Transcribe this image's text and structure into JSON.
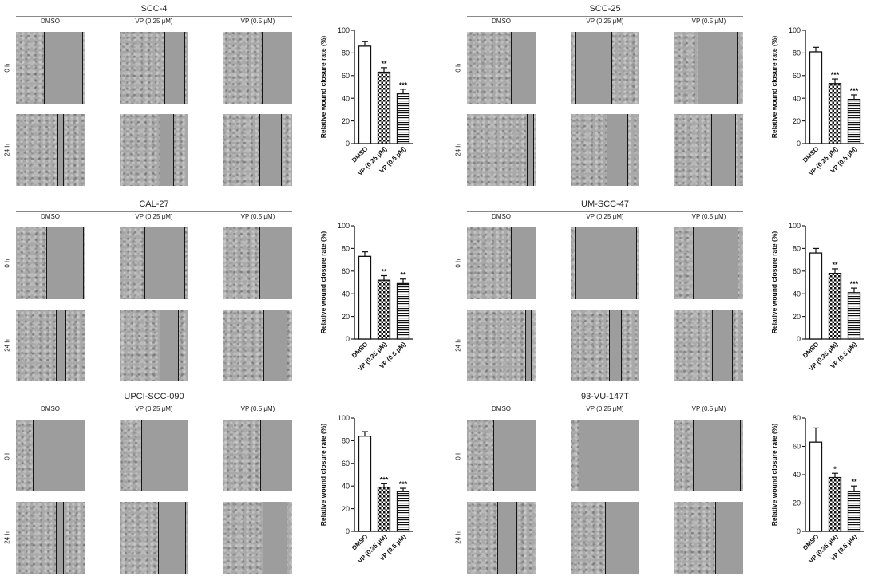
{
  "time_labels": [
    "0 h",
    "24 h"
  ],
  "conditions": [
    "DMSO",
    "VP (0.25 μM)",
    "VP (0.5 μM)"
  ],
  "colors": {
    "axis": "#111111",
    "bar_fill": "#ffffff",
    "hatch": "#111111",
    "cell_image": "#a9a9a9"
  },
  "chart_data": [
    {
      "type": "bar",
      "title": "SCC-4",
      "categories": [
        "DMSO",
        "VP (0.25 μM)",
        "VP (0.5 μM)"
      ],
      "values": [
        86,
        63,
        44
      ],
      "errors": [
        4,
        4,
        4
      ],
      "significance": [
        "",
        "**",
        "***"
      ],
      "patterns": [
        "none",
        "checker",
        "stripes"
      ],
      "ylabel": "Relative wound closure rate (%)",
      "ylim": [
        0,
        100
      ],
      "yticks": [
        0,
        20,
        40,
        60,
        80,
        100
      ]
    },
    {
      "type": "bar",
      "title": "SCC-25",
      "categories": [
        "DMSO",
        "VP (0.25 μM)",
        "VP (0.5 μM)"
      ],
      "values": [
        81,
        53,
        39
      ],
      "errors": [
        4,
        4,
        4
      ],
      "significance": [
        "",
        "***",
        "***"
      ],
      "patterns": [
        "none",
        "checker",
        "stripes"
      ],
      "ylabel": "Relative wound closure rate (%)",
      "ylim": [
        0,
        100
      ],
      "yticks": [
        0,
        20,
        40,
        60,
        80,
        100
      ]
    },
    {
      "type": "bar",
      "title": "CAL-27",
      "categories": [
        "DMSO",
        "VP (0.25 μM)",
        "VP (0.5 μM)"
      ],
      "values": [
        73,
        52,
        49
      ],
      "errors": [
        4,
        4,
        4
      ],
      "significance": [
        "",
        "**",
        "**"
      ],
      "patterns": [
        "none",
        "checker",
        "stripes"
      ],
      "ylabel": "Relative wound closure rate (%)",
      "ylim": [
        0,
        100
      ],
      "yticks": [
        0,
        20,
        40,
        60,
        80,
        100
      ]
    },
    {
      "type": "bar",
      "title": "UM-SCC-47",
      "categories": [
        "DMSO",
        "VP (0.25 μM)",
        "VP (0.5 μM)"
      ],
      "values": [
        76,
        58,
        41
      ],
      "errors": [
        4,
        4,
        4
      ],
      "significance": [
        "",
        "**",
        "***"
      ],
      "patterns": [
        "none",
        "checker",
        "stripes"
      ],
      "ylabel": "Relative wound closure rate (%)",
      "ylim": [
        0,
        100
      ],
      "yticks": [
        0,
        20,
        40,
        60,
        80,
        100
      ]
    },
    {
      "type": "bar",
      "title": "UPCI-SCC-090",
      "categories": [
        "DMSO",
        "VP (0.25 μM)",
        "VP (0.5 μM)"
      ],
      "values": [
        84,
        39,
        35
      ],
      "errors": [
        4,
        3,
        3
      ],
      "significance": [
        "",
        "***",
        "***"
      ],
      "patterns": [
        "none",
        "checker",
        "stripes"
      ],
      "ylabel": "Relative wound closure rate (%)",
      "ylim": [
        0,
        100
      ],
      "yticks": [
        0,
        20,
        40,
        60,
        80,
        100
      ]
    },
    {
      "type": "bar",
      "title": "93-VU-147T",
      "categories": [
        "DMSO",
        "VP (0.25 μM)",
        "VP (0.5 μM)"
      ],
      "values": [
        63,
        38,
        28
      ],
      "errors": [
        10,
        3,
        4
      ],
      "significance": [
        "",
        "*",
        "**"
      ],
      "patterns": [
        "none",
        "checker",
        "stripes"
      ],
      "ylabel": "Relative wound closure rate (%)",
      "ylim": [
        0,
        80
      ],
      "yticks": [
        0,
        20,
        40,
        60,
        80
      ]
    }
  ]
}
